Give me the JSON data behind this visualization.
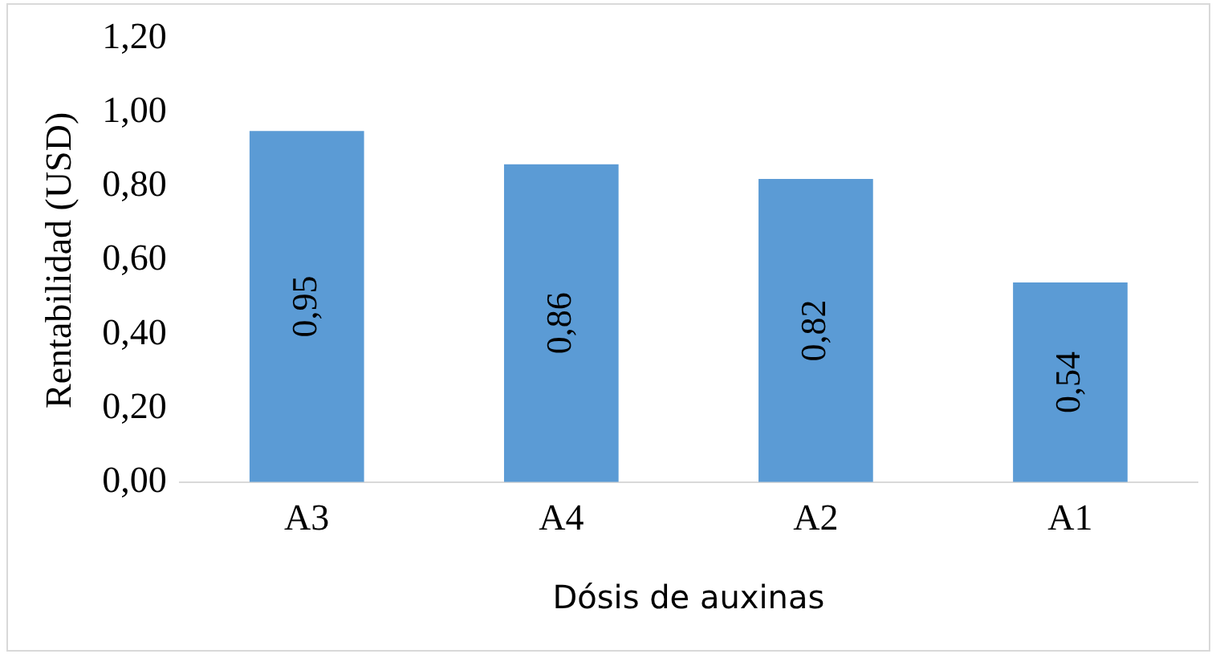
{
  "chart_data": {
    "type": "bar",
    "xlabel": "Dósis de auxinas",
    "ylabel": "Rentabilidad (USD)",
    "categories": [
      "A3",
      "A4",
      "A2",
      "A1"
    ],
    "values": [
      0.95,
      0.86,
      0.82,
      0.54
    ],
    "value_labels": [
      "0,95",
      "0,86",
      "0,82",
      "0,54"
    ],
    "color": "#5b9bd5",
    "ylim": [
      0,
      1.2
    ],
    "yticks": [
      {
        "value": 0,
        "label": "0,00"
      },
      {
        "value": 0.2,
        "label": "0,20"
      },
      {
        "value": 0.4,
        "label": "0,40"
      },
      {
        "value": 0.6,
        "label": "0,60"
      },
      {
        "value": 0.8,
        "label": "0,80"
      },
      {
        "value": 1,
        "label": "1,00"
      },
      {
        "value": 1.2,
        "label": "1,20"
      }
    ],
    "grid": false,
    "legend": false
  }
}
